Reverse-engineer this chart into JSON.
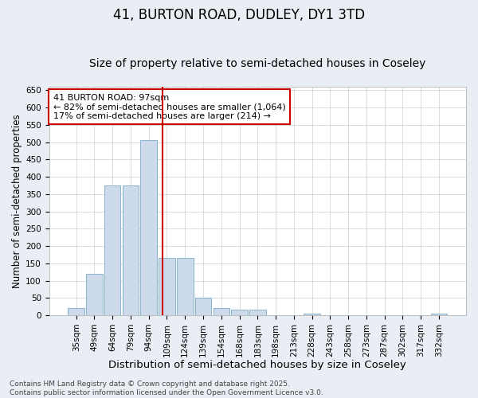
{
  "title": "41, BURTON ROAD, DUDLEY, DY1 3TD",
  "subtitle": "Size of property relative to semi-detached houses in Coseley",
  "xlabel": "Distribution of semi-detached houses by size in Coseley",
  "ylabel": "Number of semi-detached properties",
  "categories": [
    "35sqm",
    "49sqm",
    "64sqm",
    "79sqm",
    "94sqm",
    "109sqm",
    "124sqm",
    "139sqm",
    "154sqm",
    "168sqm",
    "183sqm",
    "198sqm",
    "213sqm",
    "228sqm",
    "243sqm",
    "258sqm",
    "273sqm",
    "287sqm",
    "302sqm",
    "317sqm",
    "332sqm"
  ],
  "values": [
    20,
    120,
    375,
    375,
    505,
    165,
    165,
    50,
    20,
    15,
    15,
    0,
    0,
    5,
    0,
    0,
    0,
    0,
    0,
    0,
    5
  ],
  "bar_color": "#ccdaeb",
  "bar_edge_color": "#7aaac8",
  "vline_x_index": 4.75,
  "vline_color": "#cc0000",
  "annotation_text": "41 BURTON ROAD: 97sqm\n← 82% of semi-detached houses are smaller (1,064)\n17% of semi-detached houses are larger (214) →",
  "annotation_box_facecolor": "#ffffff",
  "annotation_box_edgecolor": "#cc0000",
  "ylim": [
    0,
    660
  ],
  "yticks": [
    0,
    50,
    100,
    150,
    200,
    250,
    300,
    350,
    400,
    450,
    500,
    550,
    600,
    650
  ],
  "title_fontsize": 12,
  "subtitle_fontsize": 10,
  "xlabel_fontsize": 9.5,
  "ylabel_fontsize": 8.5,
  "tick_fontsize": 7.5,
  "annotation_fontsize": 8,
  "footer_text": "Contains HM Land Registry data © Crown copyright and database right 2025.\nContains public sector information licensed under the Open Government Licence v3.0.",
  "footer_fontsize": 6.5,
  "background_color": "#e8eef4",
  "plot_background_color": "#ffffff",
  "grid_color": "#c8d0d8"
}
